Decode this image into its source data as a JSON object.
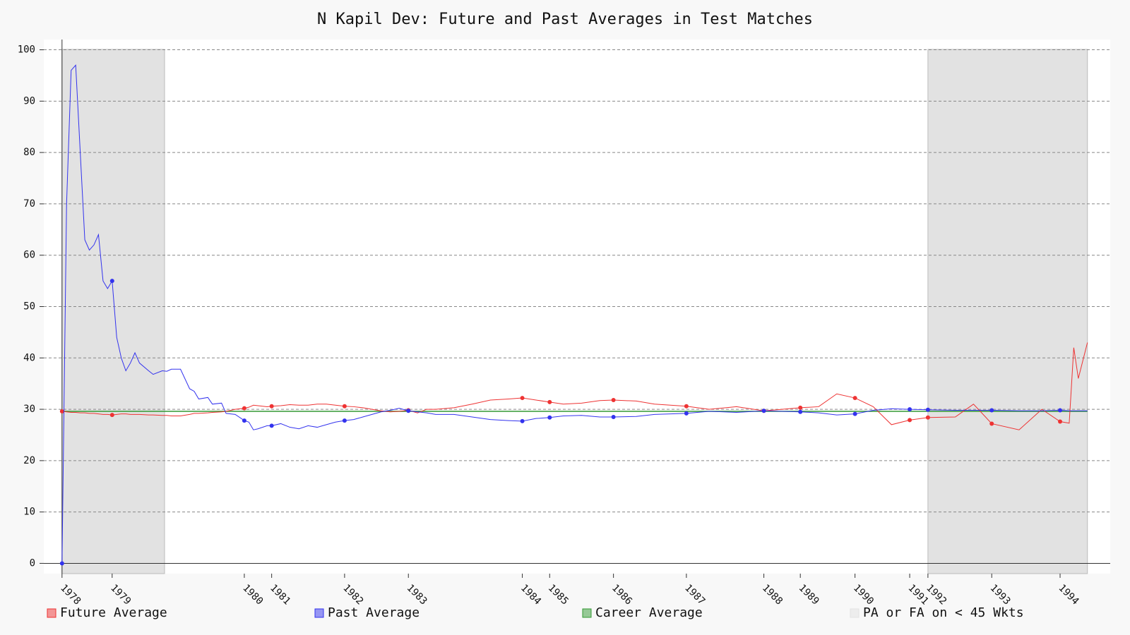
{
  "chart_data": {
    "type": "line",
    "title": "N Kapil Dev: Future and Past Averages in Test Matches",
    "x": [
      0,
      1,
      2,
      3,
      4,
      5,
      6,
      7,
      8,
      9,
      10,
      11,
      12,
      13,
      14,
      15,
      16,
      17,
      19,
      20,
      22,
      23,
      24,
      26,
      28,
      29,
      30,
      32,
      33,
      35,
      36,
      38,
      40,
      41,
      42,
      43,
      45,
      46,
      48,
      50,
      52,
      54,
      56,
      58,
      60,
      62,
      64,
      66,
      68,
      70,
      72,
      74,
      76,
      78,
      80,
      82,
      86,
      90,
      94,
      98,
      101,
      104,
      107,
      110,
      114,
      118,
      121,
      126,
      130,
      137,
      142,
      148,
      154,
      158,
      162,
      166,
      170,
      174,
      178,
      182,
      186,
      190,
      196,
      200,
      204,
      210,
      215,
      219,
      221,
      222,
      223,
      225
    ],
    "series": [
      {
        "name": "Future Average",
        "color": "#ee3333",
        "values": [
          29.6,
          29.5,
          29.4,
          29.4,
          29.3,
          29.3,
          29.2,
          29.2,
          29.1,
          29,
          29,
          28.9,
          29,
          29.1,
          29.1,
          29,
          29,
          29,
          28.9,
          28.9,
          28.8,
          28.8,
          28.7,
          28.7,
          29,
          29.2,
          29.2,
          29.3,
          29.4,
          29.5,
          29.6,
          30,
          30.2,
          30.4,
          30.8,
          30.7,
          30.5,
          30.6,
          30.7,
          30.9,
          30.8,
          30.8,
          31,
          31,
          30.8,
          30.6,
          30.5,
          30.3,
          30,
          29.7,
          29.5,
          29.6,
          29.8,
          29.3,
          30,
          30,
          30.3,
          31,
          31.8,
          32,
          32.2,
          31.8,
          31.4,
          31,
          31.2,
          31.7,
          31.8,
          31.6,
          31,
          30.6,
          30,
          30.5,
          29.7,
          30,
          30.3,
          30.5,
          33,
          32.2,
          30.5,
          27,
          27.9,
          28.4,
          28.5,
          31,
          27.2,
          26,
          30,
          27.6,
          27.3,
          42,
          36,
          43
        ]
      },
      {
        "name": "Past Average",
        "color": "#3333ee",
        "values": [
          0,
          70,
          96,
          97,
          80,
          63,
          61,
          62,
          64,
          55,
          53.5,
          55,
          44,
          40,
          37.5,
          39,
          41,
          39,
          37.5,
          36.8,
          37.5,
          37.4,
          37.8,
          37.8,
          34,
          33.5,
          32,
          32.3,
          31,
          31.2,
          29.2,
          29,
          27.8,
          27.5,
          26,
          26.2,
          26.8,
          26.8,
          27.2,
          26.5,
          26.2,
          26.8,
          26.5,
          27,
          27.5,
          27.8,
          28,
          28.5,
          29,
          29.5,
          29.8,
          30.2,
          29.7,
          29.5,
          29.3,
          29,
          29,
          28.5,
          28,
          27.8,
          27.7,
          28.2,
          28.4,
          28.7,
          28.8,
          28.5,
          28.5,
          28.6,
          29,
          29.2,
          29.6,
          29.4,
          29.7,
          29.6,
          29.5,
          29.3,
          28.9,
          29.1,
          29.8,
          30.1,
          30,
          29.9,
          29.8,
          29.8,
          29.8,
          29.7,
          29.7,
          29.8,
          29.7,
          29.7,
          29.7,
          29.7
        ]
      }
    ],
    "career": {
      "name": "Career Average",
      "color": "#339933",
      "value": 29.6
    },
    "region_label": "PA or FA on < 45 Wkts",
    "region_color": "#e2e2e2",
    "regions": [
      [
        0,
        22.5
      ],
      [
        190,
        225
      ]
    ],
    "xlim": [
      -4,
      230
    ],
    "xticks": [
      {
        "value": 0,
        "label": "1978"
      },
      {
        "value": 11,
        "label": "1979"
      },
      {
        "value": 40,
        "label": "1980"
      },
      {
        "value": 46,
        "label": "1981"
      },
      {
        "value": 62,
        "label": "1982"
      },
      {
        "value": 76,
        "label": "1983"
      },
      {
        "value": 101,
        "label": "1984"
      },
      {
        "value": 107,
        "label": "1985"
      },
      {
        "value": 121,
        "label": "1986"
      },
      {
        "value": 137,
        "label": "1987"
      },
      {
        "value": 154,
        "label": "1988"
      },
      {
        "value": 162,
        "label": "1989"
      },
      {
        "value": 174,
        "label": "1990"
      },
      {
        "value": 186,
        "label": "1991"
      },
      {
        "value": 190,
        "label": "1992"
      },
      {
        "value": 204,
        "label": "1993"
      },
      {
        "value": 219,
        "label": "1994"
      }
    ],
    "ylim": [
      -2,
      102
    ],
    "yticks": [
      0,
      10,
      20,
      30,
      40,
      50,
      60,
      70,
      80,
      90,
      100
    ],
    "grid": true
  }
}
